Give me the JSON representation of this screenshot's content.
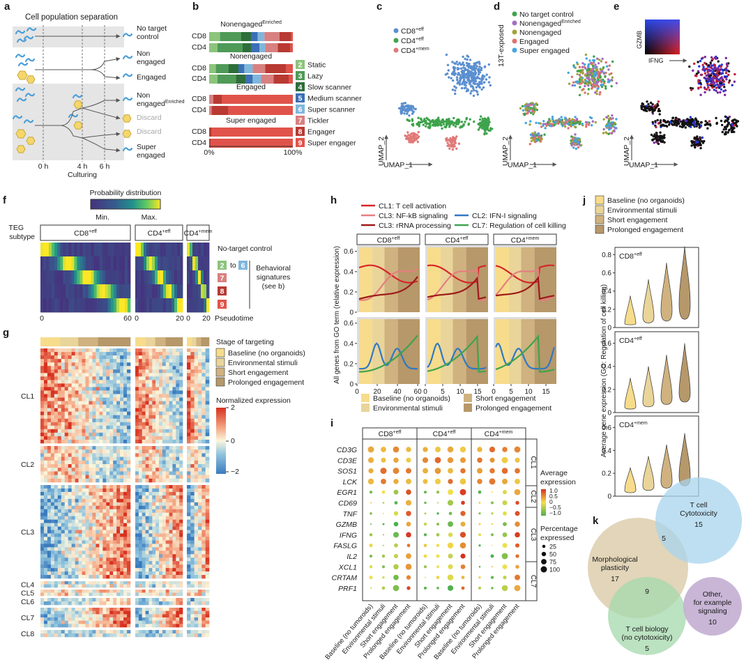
{
  "a": {
    "label": "a",
    "title": "Cell population separation",
    "outcomes": [
      {
        "lines": [
          "No target",
          "control"
        ]
      },
      {
        "lines": [
          "Non",
          "engaged"
        ]
      },
      {
        "lines": [
          "Engaged"
        ]
      },
      {
        "lines": [
          "Non",
          "engaged"
        ],
        "sup": "Enriched"
      },
      {
        "lines": [
          "Discard"
        ]
      },
      {
        "lines": [
          "Discard"
        ]
      },
      {
        "lines": [
          "Super",
          "engaged"
        ]
      }
    ],
    "times": [
      "0 h",
      "4 h",
      "6 h"
    ],
    "axis": "Culturing"
  },
  "b": {
    "label": "b",
    "groups": [
      {
        "title": "Nonengaged",
        "sup": "Enriched",
        "rows": [
          "CD8",
          "CD4"
        ],
        "segments": [
          [
            13,
            25,
            12,
            8,
            8,
            18,
            14,
            2
          ],
          [
            10,
            30,
            10,
            10,
            7,
            15,
            15,
            3
          ]
        ]
      },
      {
        "title": "Nonengaged",
        "rows": [
          "CD8",
          "CD4"
        ],
        "segments": [
          [
            8,
            15,
            12,
            7,
            10,
            15,
            25,
            8
          ],
          [
            10,
            22,
            12,
            8,
            10,
            15,
            18,
            5
          ]
        ]
      },
      {
        "title": "Engaged",
        "rows": [
          "CD8",
          "CD4"
        ],
        "segments": [
          [
            0,
            0,
            0,
            0,
            0,
            5,
            10,
            85
          ],
          [
            0,
            0,
            0,
            0,
            0,
            3,
            20,
            77
          ]
        ]
      },
      {
        "title": "Super engaged",
        "rows": [
          "CD8",
          "CD4"
        ],
        "segments": [
          [
            0,
            0,
            0,
            0,
            0,
            0,
            3,
            97
          ],
          [
            0,
            0,
            0,
            0,
            0,
            0,
            2,
            98
          ]
        ]
      }
    ],
    "axis": [
      "0%",
      "100%"
    ],
    "legend": [
      {
        "key": 2,
        "name": "Static",
        "color": "#8cc47c"
      },
      {
        "key": 3,
        "name": "Lazy",
        "color": "#4f9a57"
      },
      {
        "key": 4,
        "name": "Slow scanner",
        "color": "#2e6e3a"
      },
      {
        "key": 5,
        "name": "Medium scanner",
        "color": "#3b6fb6"
      },
      {
        "key": 6,
        "name": "Super scanner",
        "color": "#7fb7dc"
      },
      {
        "key": 7,
        "name": "Tickler",
        "color": "#d98080"
      },
      {
        "key": 8,
        "name": "Engager",
        "color": "#b83a32"
      },
      {
        "key": 9,
        "name": "Super engager",
        "color": "#e0534a"
      }
    ]
  },
  "c": {
    "label": "c",
    "legend": [
      {
        "base": "CD8",
        "sup": "+eff",
        "color": "#5b8fd0"
      },
      {
        "base": "CD4",
        "sup": "+eff",
        "color": "#3fa34d"
      },
      {
        "base": "CD4",
        "sup": "+mem",
        "color": "#e07a78"
      }
    ],
    "xlabel": "UMAP_1",
    "ylabel": "UMAP_2"
  },
  "d": {
    "label": "d",
    "side": "13T-exposed",
    "legend": [
      {
        "name": "No target control",
        "color": "#3fa34d"
      },
      {
        "name": "Nonengaged",
        "sup": "Enriched",
        "color": "#a46cc4"
      },
      {
        "name": "Nonengaged",
        "color": "#a3a33a"
      },
      {
        "name": "Engaged",
        "color": "#e07070"
      },
      {
        "name": "Super engaged",
        "color": "#45a6e0"
      }
    ],
    "xlabel": "UMAP_1",
    "ylabel": "UMAP_2"
  },
  "e": {
    "label": "e",
    "gene_y": "GZMB",
    "gene_x": "IFNG",
    "xlabel": "UMAP_1",
    "ylabel": "UMAP_2"
  },
  "f": {
    "label": "f",
    "colorbar_title": "Probability distribution",
    "min": "Min.",
    "max": "Max.",
    "row_title": [
      "TEG",
      "subtype"
    ],
    "headers": [
      {
        "base": "CD8",
        "sup": "+eff"
      },
      {
        "base": "CD4",
        "sup": "+eff"
      },
      {
        "base": "CD4",
        "sup": "+mem"
      }
    ],
    "top_row": "No-target control",
    "keys": [
      2,
      "to",
      6,
      7,
      8,
      9
    ],
    "bracket": [
      "Behavioral",
      "signatures",
      "(see b)"
    ],
    "xticks": [
      [
        0,
        60
      ],
      [
        0,
        20
      ],
      [
        0,
        20
      ]
    ],
    "xlabel": "Pseudotime"
  },
  "g": {
    "label": "g",
    "stage_title": "Stage of targeting",
    "stages": [
      {
        "name": "Baseline (no organoids)",
        "color": "#f7dc8c"
      },
      {
        "name": "Environmental stimuli",
        "color": "#e9d49a"
      },
      {
        "name": "Short engagement",
        "color": "#cfb27f"
      },
      {
        "name": "Prolonged engagement",
        "color": "#b6986a"
      }
    ],
    "colorbar_title": "Normalized expression",
    "colorbar_ticks": [
      2,
      0,
      "−2"
    ],
    "clusters": [
      "CL1",
      "CL2",
      "CL3",
      "CL4",
      "CL5",
      "CL6",
      "CL7",
      "CL8"
    ]
  },
  "h": {
    "label": "h",
    "legend": [
      {
        "name": "CL1: T cell activation",
        "color": "#d62728"
      },
      {
        "name": "CL3: NF-kB signaling",
        "color": "#e57f7f"
      },
      {
        "name": "CL3: rRNA processing",
        "color": "#9e1a1a"
      },
      {
        "name": "CL2: IFN-I signaling",
        "color": "#2f78c4"
      },
      {
        "name": "CL7: Regulation of cell killing",
        "color": "#3fa34d"
      }
    ],
    "ylabel": "All genes from GO term (relative expression)",
    "ylim": [
      0,
      0.66
    ],
    "yticks_top": [
      0,
      0.2,
      0.4,
      0.6
    ],
    "yticks_bottom": [
      0,
      0.2,
      0.4,
      0.6
    ],
    "panels": [
      {
        "base": "CD8",
        "sup": "+eff",
        "xlim": [
          0,
          62
        ],
        "xticks": [
          0,
          20,
          40,
          60
        ]
      },
      {
        "base": "CD4",
        "sup": "+eff",
        "xlim": [
          0,
          18
        ],
        "xticks": [
          0,
          5,
          10,
          15
        ]
      },
      {
        "base": "CD4",
        "sup": "+mem",
        "xlim": [
          0,
          18
        ],
        "xticks": [
          0,
          5,
          10,
          15
        ]
      }
    ],
    "stages": [
      "Baseline (no organoids)",
      "Environmental stimuli",
      "Short engagement",
      "Prolonged engagement"
    ]
  },
  "i": {
    "label": "i",
    "groups": [
      {
        "base": "CD8",
        "sup": "+eff"
      },
      {
        "base": "CD4",
        "sup": "+eff"
      },
      {
        "base": "CD4",
        "sup": "+mem"
      }
    ],
    "genes": [
      "CD3G",
      "CD3E",
      "SOS1",
      "LCK",
      "EGR1",
      "CD69",
      "TNF",
      "GZMB",
      "IFNG",
      "FASLG",
      "IL2",
      "XCL1",
      "CRTAM",
      "PRF1"
    ],
    "clusters": [
      "CL1",
      "CL2",
      "CL3",
      "CL7"
    ],
    "conditions": [
      "Baseline (no tumoroids)",
      "Environmental stimuli",
      "Short engagement",
      "Prolonged engagement"
    ],
    "color_title": [
      "Average",
      "expression"
    ],
    "color_ticks": [
      "1.0",
      "0.5",
      0,
      "−0.5",
      "−1.0"
    ],
    "size_title": [
      "Percentage",
      "expressed"
    ],
    "size_ticks": [
      25,
      50,
      75,
      100
    ]
  },
  "j": {
    "label": "j",
    "legend": [
      "Baseline (no organoids)",
      "Environmental stimuli",
      "Short engagement",
      "Prolonged engagement"
    ],
    "ylabel": "Average gene expression (GO: Regulation of cell killing)",
    "panels": [
      {
        "base": "CD8",
        "sup": "+eff",
        "ylim": [
          0,
          0.88
        ],
        "yticks": [
          0,
          0.2,
          0.4,
          0.6,
          0.8
        ]
      },
      {
        "base": "CD4",
        "sup": "+eff",
        "ylim": [
          0,
          0.7
        ],
        "yticks": [
          0,
          0.2,
          0.4,
          0.6
        ]
      },
      {
        "base": "CD4",
        "sup": "+mem",
        "ylim": [
          0,
          0.7
        ],
        "yticks": [
          0,
          0.2,
          0.4,
          0.6
        ]
      }
    ]
  },
  "k": {
    "label": "k",
    "sets": [
      {
        "lines": [
          "T cell",
          "Cytotoxicity"
        ],
        "count": 15
      },
      {
        "lines": [
          "Morphological",
          "plasticity"
        ],
        "count": 17
      },
      {
        "lines": [
          "T cell biology",
          "(no cytotoxicity)"
        ],
        "count": 5
      },
      {
        "lines": [
          "Other,",
          "for example",
          "signaling"
        ],
        "count": 10
      }
    ],
    "overlaps": [
      5,
      9
    ]
  }
}
